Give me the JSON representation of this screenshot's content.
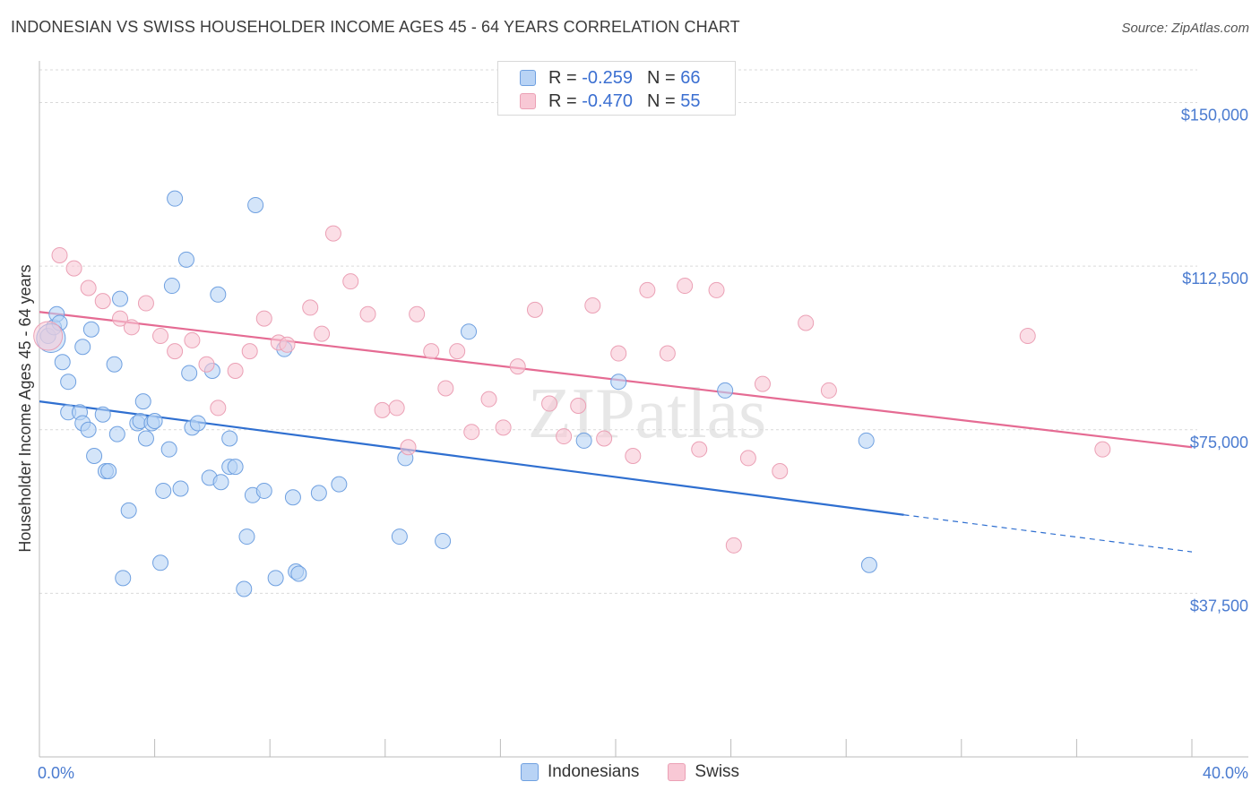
{
  "title": "INDONESIAN VS SWISS HOUSEHOLDER INCOME AGES 45 - 64 YEARS CORRELATION CHART",
  "source": "Source: ZipAtlas.com",
  "watermark": "ZIPatlas",
  "legend": {
    "r_label": "R =",
    "n_label": "N =",
    "series": [
      {
        "r": "-0.259",
        "n": "66"
      },
      {
        "r": "-0.470",
        "n": "55"
      }
    ]
  },
  "chart_data": {
    "type": "scatter",
    "title": "INDONESIAN VS SWISS HOUSEHOLDER INCOME AGES 45 - 64 YEARS CORRELATION CHART",
    "xlabel": "",
    "ylabel": "Householder Income Ages 45 - 64 years",
    "xlim": [
      0,
      40
    ],
    "ylim": [
      0,
      157500
    ],
    "x_tick_labels": [
      "0.0%",
      "40.0%"
    ],
    "y_ticks": [
      37500,
      75000,
      112500,
      150000
    ],
    "y_tick_labels": [
      "$37,500",
      "$75,000",
      "$112,500",
      "$150,000"
    ],
    "grid": true,
    "legend_position": "top-center",
    "series": [
      {
        "name": "Indonesians",
        "color": "#6fa0e0",
        "fill": "#b8d3f5",
        "line_color": "#2f6fd0",
        "r": -0.259,
        "n": 66,
        "trend": {
          "x0": 0,
          "y0": 81500,
          "x1": 30,
          "y1": 55500,
          "dashed_to": 40,
          "dashed_y": 47000
        },
        "points": [
          [
            0.3,
            96500
          ],
          [
            0.5,
            98500
          ],
          [
            0.6,
            101500
          ],
          [
            0.7,
            99500
          ],
          [
            0.8,
            90500
          ],
          [
            1.0,
            86000
          ],
          [
            1.0,
            79000
          ],
          [
            1.4,
            79000
          ],
          [
            1.5,
            94000
          ],
          [
            1.5,
            76500
          ],
          [
            1.7,
            75000
          ],
          [
            1.8,
            98000
          ],
          [
            1.9,
            69000
          ],
          [
            2.2,
            78500
          ],
          [
            2.3,
            65500
          ],
          [
            2.4,
            65500
          ],
          [
            2.6,
            90000
          ],
          [
            2.7,
            74000
          ],
          [
            2.8,
            105000
          ],
          [
            2.9,
            41000
          ],
          [
            3.1,
            56500
          ],
          [
            3.4,
            76500
          ],
          [
            3.5,
            77000
          ],
          [
            3.6,
            81500
          ],
          [
            3.7,
            73000
          ],
          [
            3.9,
            76500
          ],
          [
            4.0,
            77000
          ],
          [
            4.2,
            44500
          ],
          [
            4.3,
            61000
          ],
          [
            4.5,
            70500
          ],
          [
            4.6,
            108000
          ],
          [
            4.7,
            128000
          ],
          [
            4.9,
            61500
          ],
          [
            5.1,
            114000
          ],
          [
            5.2,
            88000
          ],
          [
            5.3,
            75500
          ],
          [
            5.5,
            76500
          ],
          [
            5.9,
            64000
          ],
          [
            6.0,
            88500
          ],
          [
            6.2,
            106000
          ],
          [
            6.3,
            63000
          ],
          [
            6.6,
            73000
          ],
          [
            6.6,
            66500
          ],
          [
            6.8,
            66500
          ],
          [
            7.1,
            38500
          ],
          [
            7.2,
            50500
          ],
          [
            7.4,
            60000
          ],
          [
            7.5,
            126500
          ],
          [
            7.8,
            61000
          ],
          [
            8.2,
            41000
          ],
          [
            8.5,
            93500
          ],
          [
            8.8,
            59500
          ],
          [
            8.9,
            42500
          ],
          [
            9.0,
            42000
          ],
          [
            9.7,
            60500
          ],
          [
            10.4,
            62500
          ],
          [
            12.5,
            50500
          ],
          [
            12.7,
            68500
          ],
          [
            14.0,
            49500
          ],
          [
            14.9,
            97500
          ],
          [
            18.9,
            72500
          ],
          [
            20.1,
            86000
          ],
          [
            23.8,
            84000
          ],
          [
            28.7,
            72500
          ],
          [
            28.8,
            44000
          ],
          [
            0.4,
            96000
          ]
        ]
      },
      {
        "name": "Swiss",
        "color": "#eba0b5",
        "fill": "#f8c8d5",
        "line_color": "#e56b93",
        "r": -0.47,
        "n": 55,
        "trend": {
          "x0": 0,
          "y0": 102000,
          "x1": 40,
          "y1": 71000
        },
        "points": [
          [
            0.3,
            96500
          ],
          [
            0.7,
            115000
          ],
          [
            1.2,
            112000
          ],
          [
            1.7,
            107500
          ],
          [
            2.2,
            104500
          ],
          [
            2.8,
            100500
          ],
          [
            3.2,
            98500
          ],
          [
            3.7,
            104000
          ],
          [
            4.2,
            96500
          ],
          [
            4.7,
            93000
          ],
          [
            5.3,
            95500
          ],
          [
            5.8,
            90000
          ],
          [
            6.2,
            80000
          ],
          [
            6.8,
            88500
          ],
          [
            7.3,
            93000
          ],
          [
            7.8,
            100500
          ],
          [
            8.3,
            95000
          ],
          [
            8.6,
            94500
          ],
          [
            9.4,
            103000
          ],
          [
            9.8,
            97000
          ],
          [
            10.2,
            120000
          ],
          [
            10.8,
            109000
          ],
          [
            11.4,
            101500
          ],
          [
            11.9,
            79500
          ],
          [
            12.4,
            80000
          ],
          [
            12.8,
            71000
          ],
          [
            13.1,
            101500
          ],
          [
            13.6,
            93000
          ],
          [
            14.1,
            84500
          ],
          [
            14.5,
            93000
          ],
          [
            15.0,
            74500
          ],
          [
            15.6,
            82000
          ],
          [
            16.1,
            75500
          ],
          [
            16.6,
            89500
          ],
          [
            17.2,
            102500
          ],
          [
            17.7,
            81000
          ],
          [
            18.2,
            73500
          ],
          [
            18.7,
            80500
          ],
          [
            19.2,
            103500
          ],
          [
            19.6,
            73000
          ],
          [
            20.1,
            92500
          ],
          [
            20.6,
            69000
          ],
          [
            21.1,
            107000
          ],
          [
            21.8,
            92500
          ],
          [
            22.4,
            108000
          ],
          [
            22.9,
            70500
          ],
          [
            23.5,
            107000
          ],
          [
            24.1,
            48500
          ],
          [
            24.6,
            68500
          ],
          [
            25.1,
            85500
          ],
          [
            25.7,
            65500
          ],
          [
            26.6,
            99500
          ],
          [
            27.4,
            84000
          ],
          [
            34.3,
            96500
          ],
          [
            36.9,
            70500
          ]
        ]
      }
    ]
  }
}
